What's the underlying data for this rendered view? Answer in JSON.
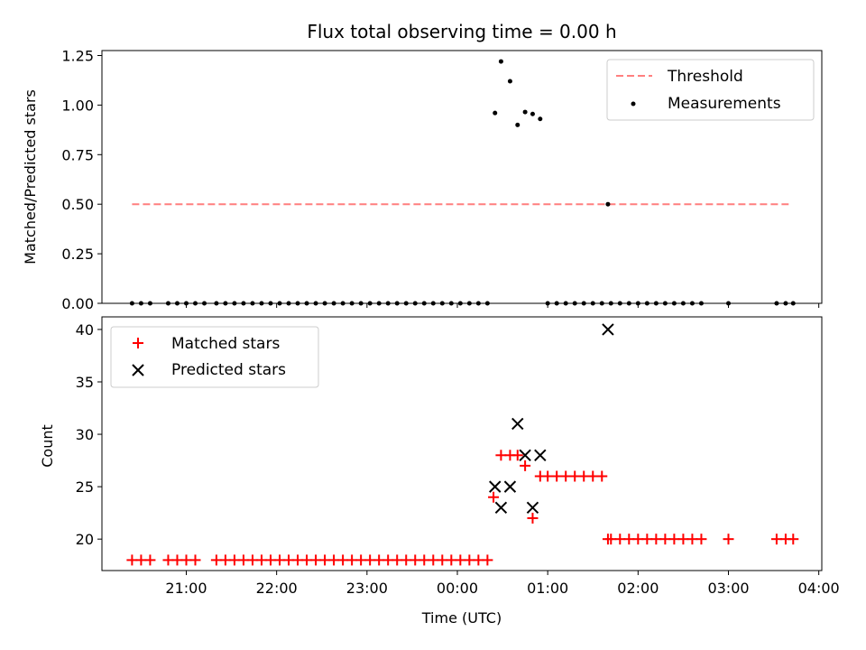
{
  "title": "Flux total observing time = 0.00 h",
  "chart_data": [
    {
      "type": "scatter",
      "ylabel": "Matched/Predicted stars",
      "ylim": [
        0,
        1.275
      ],
      "xlim": [
        "20:04",
        "04:02"
      ],
      "yticks": [
        "0.00",
        "0.25",
        "0.50",
        "0.75",
        "1.00",
        "1.25"
      ],
      "ytick_values": [
        0,
        0.25,
        0.5,
        0.75,
        1.0,
        1.25
      ],
      "legend_position": "top-right",
      "series": [
        {
          "name": "Threshold",
          "style": "dashed-line",
          "color": "#ff7f7f",
          "x": [
            "20:24",
            "03:40"
          ],
          "y": [
            0.5,
            0.5
          ]
        },
        {
          "name": "Measurements",
          "style": "dot",
          "color": "#000000",
          "x": [
            "20:24",
            "20:30",
            "20:36",
            "20:48",
            "20:54",
            "21:00",
            "21:06",
            "21:12",
            "21:20",
            "21:26",
            "21:32",
            "21:38",
            "21:44",
            "21:50",
            "21:56",
            "22:02",
            "22:08",
            "22:14",
            "22:20",
            "22:26",
            "22:32",
            "22:38",
            "22:44",
            "22:50",
            "22:56",
            "23:02",
            "23:08",
            "23:14",
            "23:20",
            "23:26",
            "23:32",
            "23:38",
            "23:44",
            "23:50",
            "23:56",
            "00:02",
            "00:08",
            "00:14",
            "00:20",
            "00:25",
            "00:29",
            "00:35",
            "00:40",
            "00:45",
            "00:50",
            "00:55",
            "01:00",
            "01:06",
            "01:12",
            "01:18",
            "01:24",
            "01:30",
            "01:36",
            "01:40",
            "01:42",
            "01:48",
            "01:54",
            "02:00",
            "02:06",
            "02:12",
            "02:18",
            "02:24",
            "02:30",
            "02:36",
            "02:42",
            "03:00",
            "03:32",
            "03:38",
            "03:43"
          ],
          "y": [
            0,
            0,
            0,
            0,
            0,
            0,
            0,
            0,
            0,
            0,
            0,
            0,
            0,
            0,
            0,
            0,
            0,
            0,
            0,
            0,
            0,
            0,
            0,
            0,
            0,
            0,
            0,
            0,
            0,
            0,
            0,
            0,
            0,
            0,
            0,
            0,
            0,
            0,
            0,
            0.96,
            1.22,
            1.12,
            0.9,
            0.965,
            0.955,
            0.93,
            0,
            0,
            0,
            0,
            0,
            0,
            0,
            0.5,
            0,
            0,
            0,
            0,
            0,
            0,
            0,
            0,
            0,
            0,
            0,
            0,
            0,
            0,
            0
          ]
        }
      ]
    },
    {
      "type": "scatter",
      "ylabel": "Count",
      "xlabel": "Time (UTC)",
      "ylim": [
        17,
        41.2
      ],
      "xlim": [
        "20:04",
        "04:02"
      ],
      "yticks": [
        "20",
        "25",
        "30",
        "35",
        "40"
      ],
      "ytick_values": [
        20,
        25,
        30,
        35,
        40
      ],
      "xticks": [
        "21:00",
        "22:00",
        "23:00",
        "00:00",
        "01:00",
        "02:00",
        "03:00",
        "04:00"
      ],
      "legend_position": "top-left",
      "series": [
        {
          "name": "Matched stars",
          "style": "plus",
          "color": "#ff0000",
          "x": [
            "20:24",
            "20:30",
            "20:36",
            "20:48",
            "20:54",
            "21:00",
            "21:06",
            "21:20",
            "21:26",
            "21:32",
            "21:38",
            "21:44",
            "21:50",
            "21:56",
            "22:02",
            "22:08",
            "22:14",
            "22:20",
            "22:26",
            "22:32",
            "22:38",
            "22:44",
            "22:50",
            "22:56",
            "23:02",
            "23:08",
            "23:14",
            "23:20",
            "23:26",
            "23:32",
            "23:38",
            "23:44",
            "23:50",
            "23:56",
            "00:02",
            "00:08",
            "00:14",
            "00:20",
            "00:24",
            "00:29",
            "00:35",
            "00:40",
            "00:45",
            "00:50",
            "00:55",
            "01:00",
            "01:06",
            "01:12",
            "01:18",
            "01:24",
            "01:30",
            "01:36",
            "01:40",
            "01:42",
            "01:48",
            "01:54",
            "02:00",
            "02:06",
            "02:12",
            "02:18",
            "02:24",
            "02:30",
            "02:36",
            "02:42",
            "03:00",
            "03:32",
            "03:38",
            "03:43"
          ],
          "y": [
            18,
            18,
            18,
            18,
            18,
            18,
            18,
            18,
            18,
            18,
            18,
            18,
            18,
            18,
            18,
            18,
            18,
            18,
            18,
            18,
            18,
            18,
            18,
            18,
            18,
            18,
            18,
            18,
            18,
            18,
            18,
            18,
            18,
            18,
            18,
            18,
            18,
            18,
            24,
            28,
            28,
            28,
            27,
            22,
            26,
            26,
            26,
            26,
            26,
            26,
            26,
            26,
            20,
            20,
            20,
            20,
            20,
            20,
            20,
            20,
            20,
            20,
            20,
            20,
            20,
            20,
            20,
            20
          ]
        },
        {
          "name": "Predicted stars",
          "style": "x",
          "color": "#000000",
          "x": [
            "00:25",
            "00:29",
            "00:35",
            "00:40",
            "00:45",
            "00:50",
            "00:55",
            "01:40"
          ],
          "y": [
            25,
            23,
            25,
            31,
            28,
            23,
            28,
            40
          ]
        }
      ]
    }
  ]
}
